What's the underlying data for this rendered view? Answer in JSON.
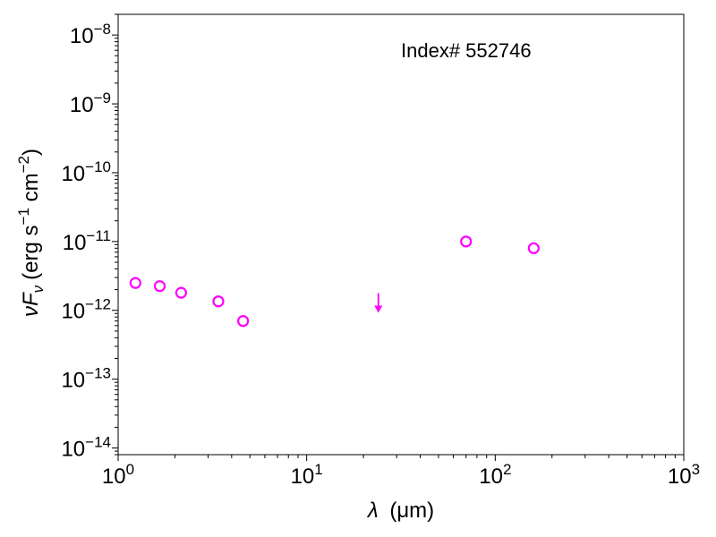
{
  "chart_data": {
    "type": "scatter",
    "title": "",
    "annotation": "Index# 552746",
    "xlabel": {
      "prefix": "λ",
      "unit": "(μm)"
    },
    "ylabel": {
      "prefix": "νF",
      "sub": "ν",
      "unit_parts": [
        "(erg s",
        "−1",
        " cm",
        "−2",
        ")"
      ]
    },
    "xscale": "log",
    "yscale": "log",
    "xlim": [
      1,
      1000
    ],
    "ylim": [
      8e-15,
      2e-08
    ],
    "xticks": [
      {
        "value": 1,
        "base": "10",
        "exp": "0"
      },
      {
        "value": 10,
        "base": "10",
        "exp": "1"
      },
      {
        "value": 100,
        "base": "10",
        "exp": "2"
      },
      {
        "value": 1000,
        "base": "10",
        "exp": "3"
      }
    ],
    "yticks": [
      {
        "value": 1e-14,
        "base": "10",
        "exp": "−14"
      },
      {
        "value": 1e-13,
        "base": "10",
        "exp": "−13"
      },
      {
        "value": 1e-12,
        "base": "10",
        "exp": "−12"
      },
      {
        "value": 1e-11,
        "base": "10",
        "exp": "−11"
      },
      {
        "value": 1e-10,
        "base": "10",
        "exp": "−10"
      },
      {
        "value": 1e-09,
        "base": "10",
        "exp": "−9"
      },
      {
        "value": 1e-08,
        "base": "10",
        "exp": "−8"
      }
    ],
    "grid": false,
    "color": "#ff00ff",
    "points": [
      {
        "x": 1.235,
        "y": 2.5e-12
      },
      {
        "x": 1.662,
        "y": 2.25e-12
      },
      {
        "x": 2.159,
        "y": 1.8e-12
      },
      {
        "x": 3.4,
        "y": 1.35e-12
      },
      {
        "x": 4.6,
        "y": 7e-13
      },
      {
        "x": 70,
        "y": 1e-11
      },
      {
        "x": 160,
        "y": 8e-12
      }
    ],
    "upper_limits": [
      {
        "x": 24,
        "y": 1.4e-12
      }
    ]
  }
}
